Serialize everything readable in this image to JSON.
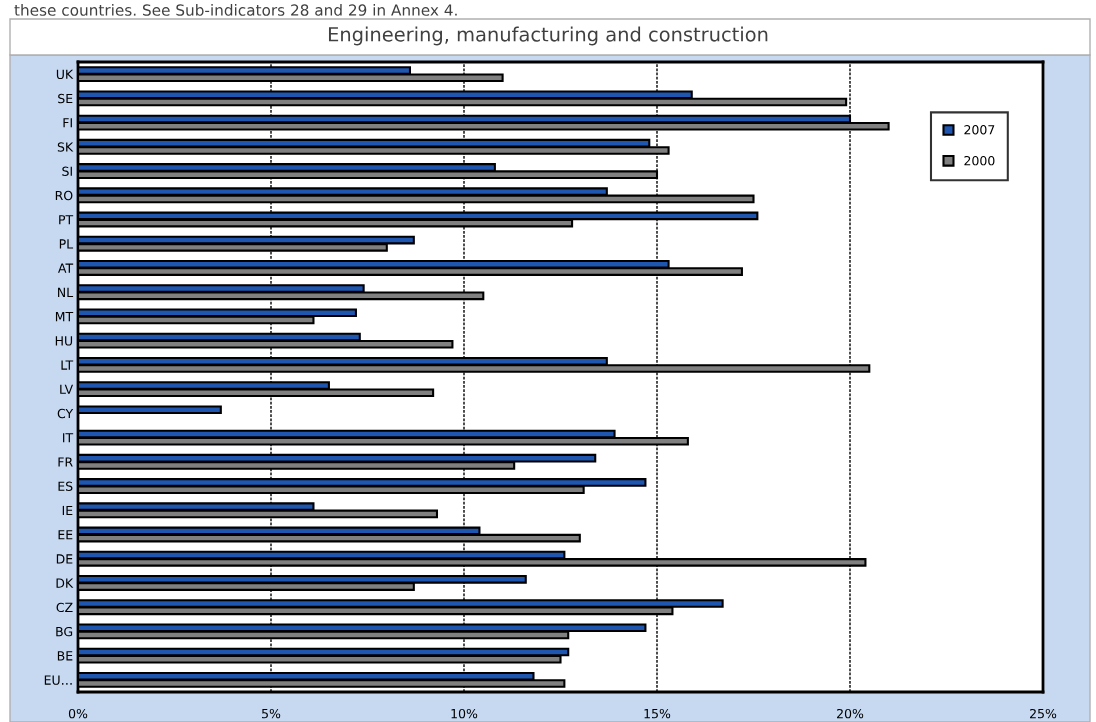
{
  "chart_data": {
    "type": "bar",
    "orientation": "horizontal",
    "title": "Engineering, manufacturing and construction",
    "annotations": [
      "these countries. See Sub-indicators 28 and 29 in Annex 4."
    ],
    "categories": [
      "UK",
      "SE",
      "FI",
      "SK",
      "SI",
      "RO",
      "PT",
      "PL",
      "AT",
      "NL",
      "MT",
      "HU",
      "LT",
      "LV",
      "CY",
      "IT",
      "FR",
      "ES",
      "IE",
      "EE",
      "DE",
      "DK",
      "CZ",
      "BG",
      "BE",
      "EU…"
    ],
    "series": [
      {
        "name": "2007",
        "color": "#1f56b0",
        "values": [
          8.6,
          15.9,
          20.0,
          14.8,
          10.8,
          13.7,
          17.6,
          8.7,
          15.3,
          7.4,
          7.2,
          7.3,
          13.7,
          6.5,
          3.7,
          13.9,
          13.4,
          14.7,
          6.1,
          10.4,
          12.6,
          11.6,
          16.7,
          14.7,
          12.7,
          11.8
        ]
      },
      {
        "name": "2000",
        "color": "#808080",
        "values": [
          11.0,
          19.9,
          21.0,
          15.3,
          15.0,
          17.5,
          12.8,
          8.0,
          17.2,
          10.5,
          6.1,
          9.7,
          20.5,
          9.2,
          null,
          15.8,
          11.3,
          13.1,
          9.3,
          13.0,
          20.4,
          8.7,
          15.4,
          12.7,
          12.5,
          12.6
        ]
      }
    ],
    "xlim": [
      0,
      25
    ],
    "xticks": [
      {
        "value": 0,
        "label": "0%"
      },
      {
        "value": 5,
        "label": "5%"
      },
      {
        "value": 10,
        "label": "10%"
      },
      {
        "value": 15,
        "label": "15%"
      },
      {
        "value": 20,
        "label": "20%"
      },
      {
        "value": 25,
        "label": "25%"
      }
    ],
    "grid": "x",
    "legend": "top right"
  }
}
